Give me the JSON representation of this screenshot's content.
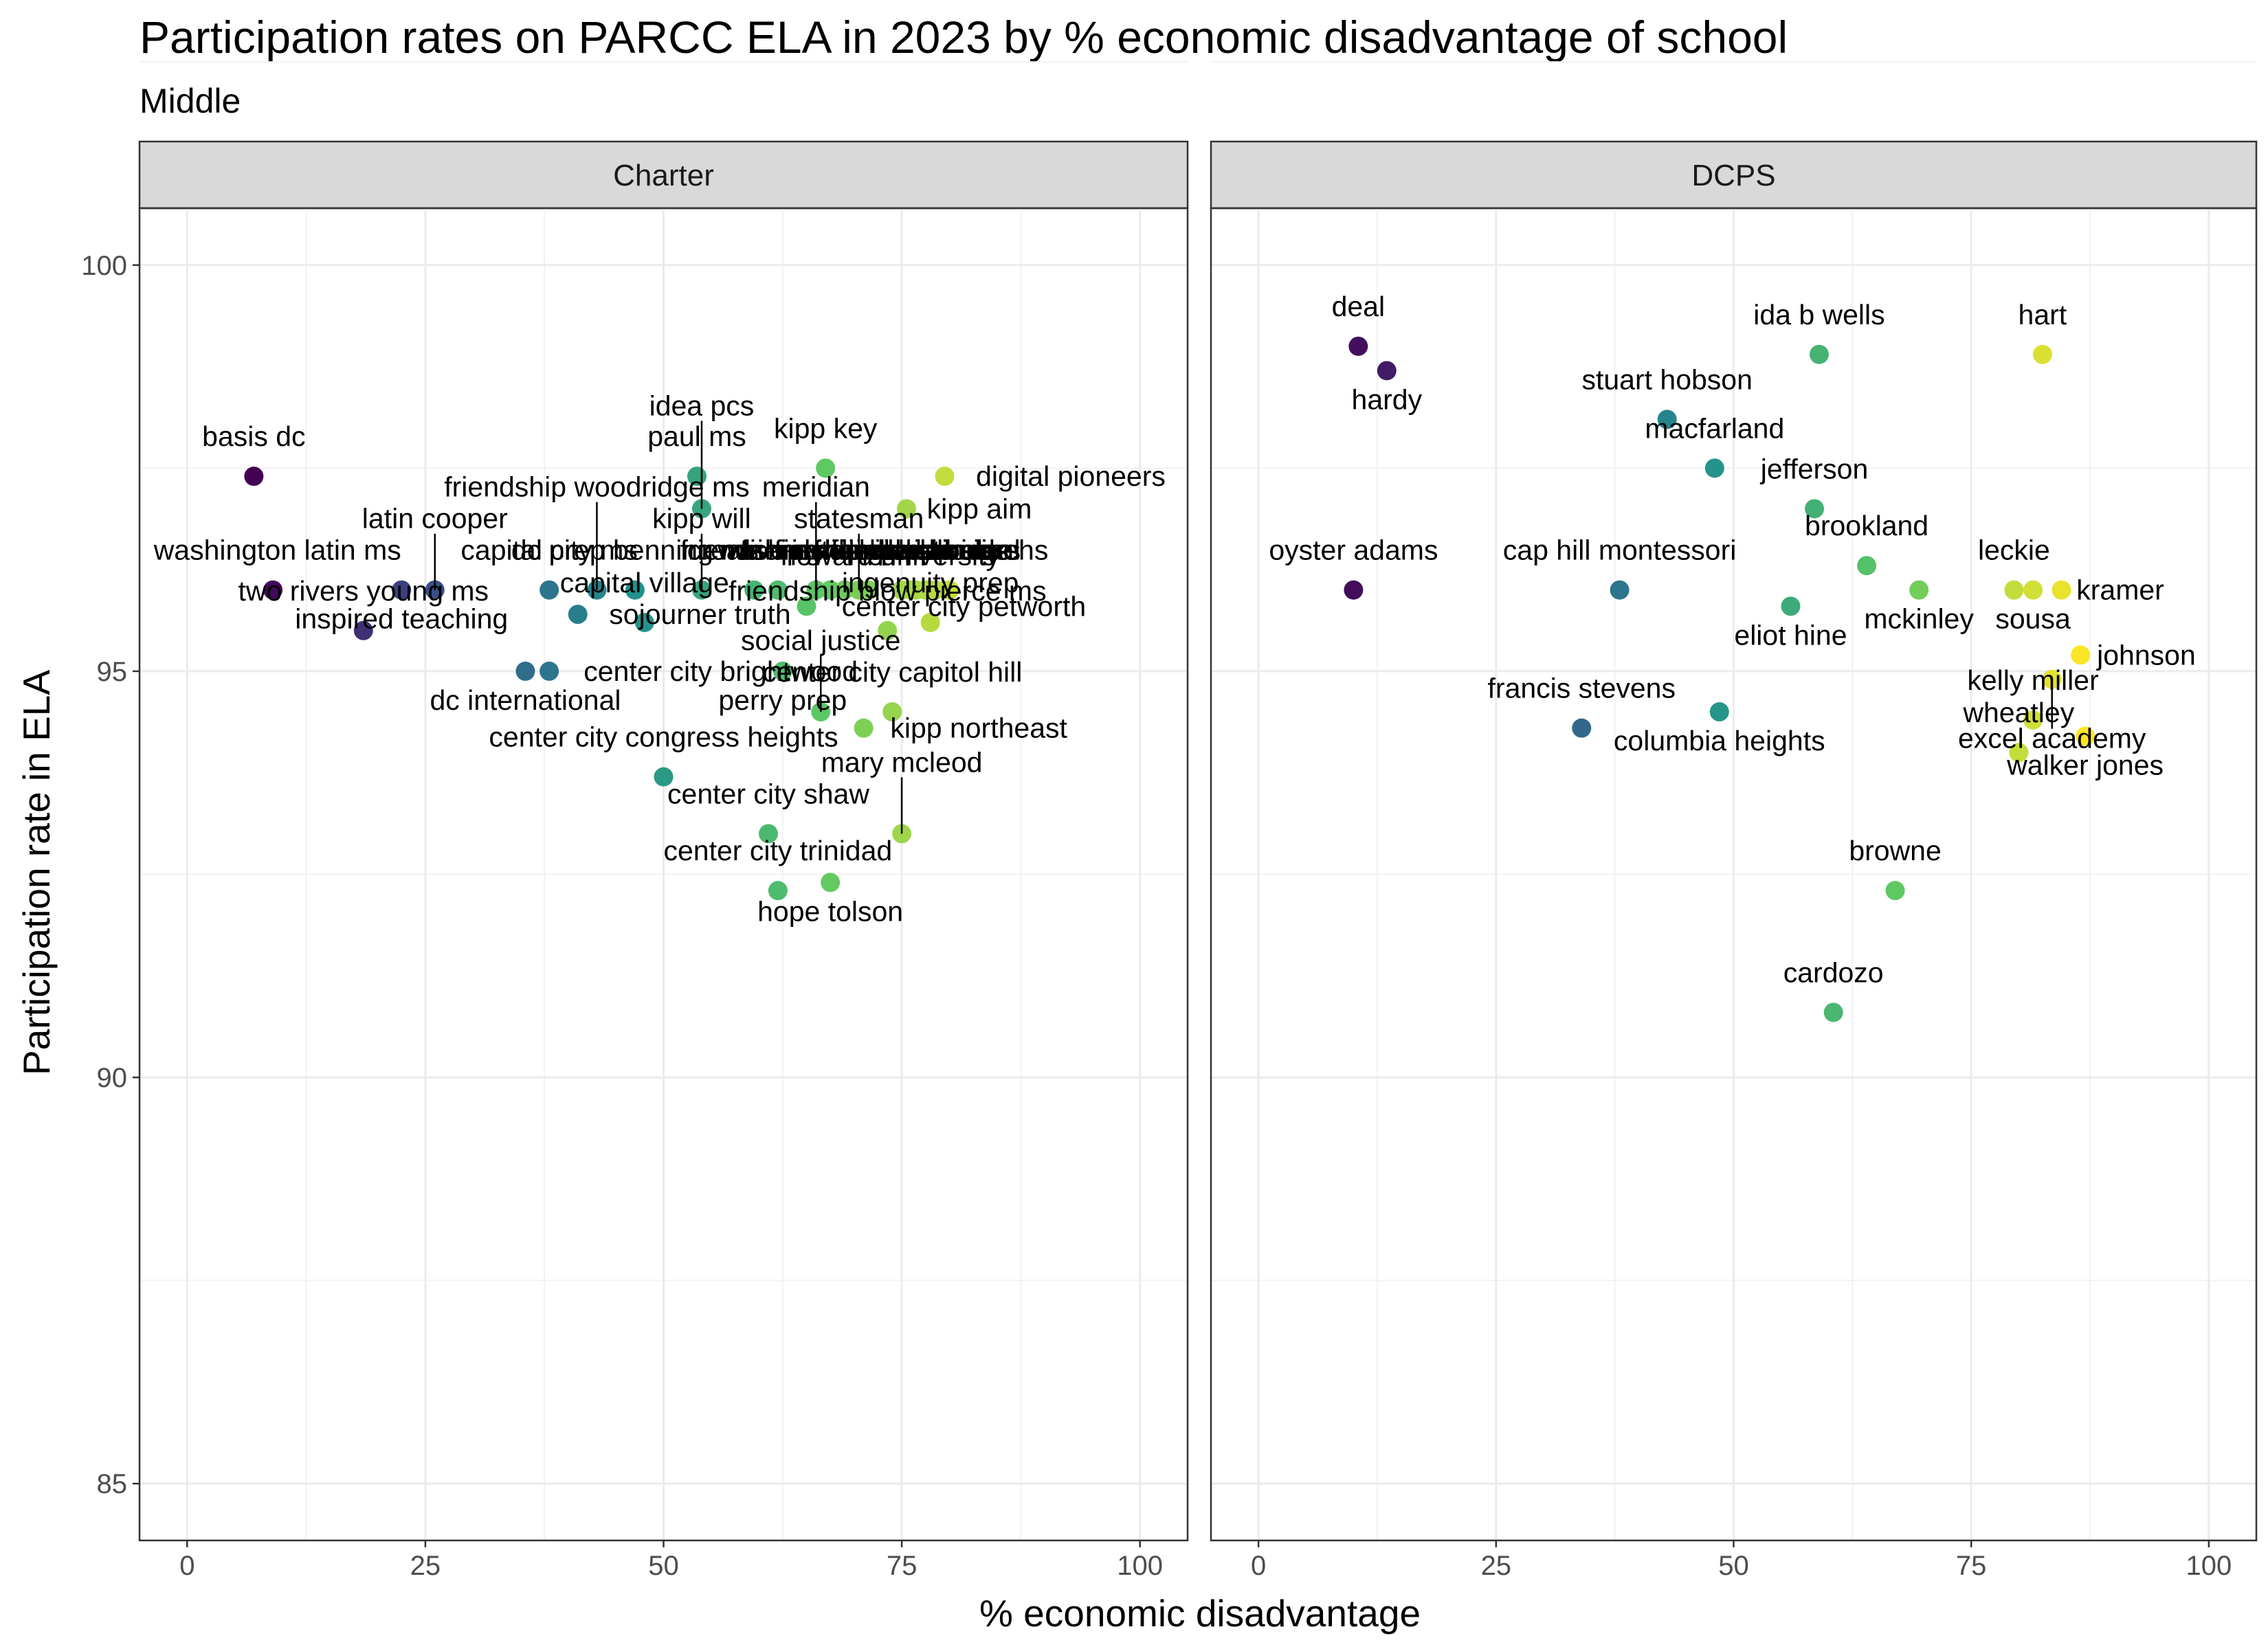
{
  "chart_data": {
    "type": "scatter",
    "title": "Participation rates on PARCC ELA in 2023 by % economic disadvantage of school",
    "subtitle": "Middle",
    "xlabel": "% economic disadvantage",
    "ylabel": "Participation rate in ELA",
    "xlim": [
      -5,
      105
    ],
    "ylim": [
      84.3,
      100.7
    ],
    "x_ticks": [
      "0",
      "25",
      "50",
      "75",
      "100"
    ],
    "y_ticks": [
      "85",
      "90",
      "95",
      "100"
    ],
    "grid": true,
    "color_scale": "viridis (by % economic disadvantage)",
    "panels": [
      {
        "name": "Charter",
        "points": [
          {
            "label": "basis dc",
            "x": 7,
            "y": 97.4
          },
          {
            "label": "washington latin ms",
            "x": 9,
            "y": 96.0
          },
          {
            "label": "two rivers young ms",
            "x": 18.5,
            "y": 95.5
          },
          {
            "label": "inspired teaching",
            "x": 22.5,
            "y": 96.0
          },
          {
            "label": "latin cooper",
            "x": 26,
            "y": 96.0
          },
          {
            "label": "capital city ms",
            "x": 38,
            "y": 96.0
          },
          {
            "label": "sojourner truth",
            "x": 41,
            "y": 95.7
          },
          {
            "label": "dc international",
            "x": 35.5,
            "y": 95.0
          },
          {
            "label": "center city brightwood",
            "x": 38,
            "y": 95.0
          },
          {
            "label": "friendship woodridge ms",
            "x": 43,
            "y": 96.0
          },
          {
            "label": "dc prep benning ms",
            "x": 47,
            "y": 96.0
          },
          {
            "label": "capital village",
            "x": 48,
            "y": 95.6
          },
          {
            "label": "center city congress heights",
            "x": 50,
            "y": 93.7
          },
          {
            "label": "paul ms",
            "x": 53.5,
            "y": 97.4
          },
          {
            "label": "idea pcs",
            "x": 54,
            "y": 97.0
          },
          {
            "label": "kipp will",
            "x": 54,
            "y": 96.0
          },
          {
            "label": "howard university",
            "x": 59.5,
            "y": 96.0
          },
          {
            "label": "creative minds",
            "x": 62,
            "y": 96.0
          },
          {
            "label": "center city shaw",
            "x": 61,
            "y": 93.0
          },
          {
            "label": "center city trinidad",
            "x": 62,
            "y": 92.3
          },
          {
            "label": "perry prep",
            "x": 62.5,
            "y": 95.0
          },
          {
            "label": "social justice",
            "x": 66.5,
            "y": 94.5
          },
          {
            "label": "center city petworth",
            "x": 65,
            "y": 95.8
          },
          {
            "label": "meridian",
            "x": 66,
            "y": 96.0
          },
          {
            "label": "washington global",
            "x": 67.5,
            "y": 96.0
          },
          {
            "label": "friendship chamberlain ms",
            "x": 69,
            "y": 96.0
          },
          {
            "label": "hope tolson",
            "x": 67.5,
            "y": 92.4
          },
          {
            "label": "kipp key",
            "x": 67,
            "y": 97.5
          },
          {
            "label": "friendship armstrong",
            "x": 71.5,
            "y": 96.0
          },
          {
            "label": "kipp northeast",
            "x": 71,
            "y": 94.3
          },
          {
            "label": "statesman",
            "x": 70.5,
            "y": 96.0
          },
          {
            "label": "friendship blow pierce ms",
            "x": 73.5,
            "y": 95.5
          },
          {
            "label": "mary mcleod",
            "x": 75,
            "y": 93.0
          },
          {
            "label": "center city capitol hill",
            "x": 74,
            "y": 94.5
          },
          {
            "label": "kipp aim",
            "x": 75.5,
            "y": 97.0
          },
          {
            "label": "kipp valor",
            "x": 75,
            "y": 96.0
          },
          {
            "label": "friendship online",
            "x": 76.5,
            "y": 96.0
          },
          {
            "label": "friendship ideal",
            "x": 77.5,
            "y": 96.0
          },
          {
            "label": "ingenuity prep",
            "x": 78,
            "y": 95.6
          },
          {
            "label": "digital pioneers",
            "x": 79.5,
            "y": 97.4
          },
          {
            "label": "friendship parkside hs",
            "x": 76,
            "y": 96.0
          },
          {
            "label": "kipp honor",
            "x": 78.5,
            "y": 96.0
          },
          {
            "label": "dc scholars",
            "x": 80,
            "y": 96.0
          }
        ]
      },
      {
        "name": "DCPS",
        "points": [
          {
            "label": "deal",
            "x": 10.5,
            "y": 99.0
          },
          {
            "label": "hardy",
            "x": 13.5,
            "y": 98.7
          },
          {
            "label": "oyster adams",
            "x": 10,
            "y": 96.0
          },
          {
            "label": "francis stevens",
            "x": 34,
            "y": 94.3
          },
          {
            "label": "cap hill montessori",
            "x": 38,
            "y": 96.0
          },
          {
            "label": "stuart hobson",
            "x": 43,
            "y": 98.1
          },
          {
            "label": "macfarland",
            "x": 48,
            "y": 97.5
          },
          {
            "label": "columbia heights",
            "x": 48.5,
            "y": 94.5
          },
          {
            "label": "eliot hine",
            "x": 56,
            "y": 95.8
          },
          {
            "label": "jefferson",
            "x": 58.5,
            "y": 97.0
          },
          {
            "label": "ida b wells",
            "x": 59,
            "y": 98.9
          },
          {
            "label": "cardozo",
            "x": 60.5,
            "y": 90.8
          },
          {
            "label": "brookland",
            "x": 64,
            "y": 96.3
          },
          {
            "label": "browne",
            "x": 67,
            "y": 92.3
          },
          {
            "label": "mckinley",
            "x": 69.5,
            "y": 96.0
          },
          {
            "label": "leckie",
            "x": 79.5,
            "y": 96.0
          },
          {
            "label": "wheatley",
            "x": 80,
            "y": 94.0
          },
          {
            "label": "sousa",
            "x": 81.5,
            "y": 96.0
          },
          {
            "label": "kelly miller",
            "x": 81.5,
            "y": 94.4
          },
          {
            "label": "hart",
            "x": 82.5,
            "y": 98.9
          },
          {
            "label": "excel academy",
            "x": 83.5,
            "y": 94.9
          },
          {
            "label": "kramer",
            "x": 84.5,
            "y": 96.0
          },
          {
            "label": "johnson",
            "x": 86.5,
            "y": 95.2
          },
          {
            "label": "walker jones",
            "x": 87,
            "y": 94.2
          }
        ]
      }
    ]
  }
}
